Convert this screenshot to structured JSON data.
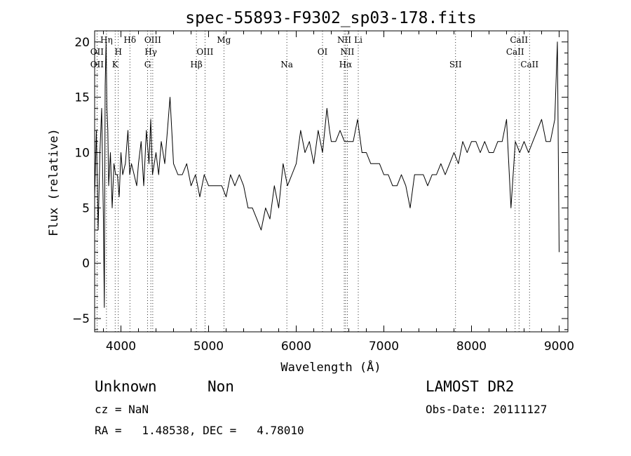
{
  "chart_data": {
    "type": "line",
    "title": "spec-55893-F9302_sp03-178.fits",
    "xlabel": "Wavelength (Å)",
    "ylabel": "Flux (relative)",
    "xlim": [
      3700,
      9100
    ],
    "ylim": [
      -6.2,
      21
    ],
    "xticks": [
      4000,
      5000,
      6000,
      7000,
      8000,
      9000
    ],
    "yticks": [
      -5,
      0,
      5,
      10,
      15,
      20
    ],
    "grid": false,
    "series": [
      {
        "x": [
          3700,
          3720,
          3740,
          3760,
          3780,
          3800,
          3810,
          3820,
          3830,
          3840,
          3850,
          3860,
          3880,
          3900,
          3920,
          3940,
          3960,
          3980,
          4000,
          4020,
          4050,
          4080,
          4100,
          4120,
          4150,
          4180,
          4200,
          4230,
          4260,
          4290,
          4320,
          4340,
          4360,
          4380,
          4400,
          4430,
          4460,
          4500,
          4530,
          4560,
          4600,
          4650,
          4700,
          4750,
          4800,
          4850,
          4900,
          4950,
          5000,
          5050,
          5100,
          5150,
          5200,
          5250,
          5300,
          5350,
          5400,
          5450,
          5500,
          5550,
          5600,
          5650,
          5700,
          5750,
          5800,
          5850,
          5900,
          5950,
          6000,
          6050,
          6100,
          6150,
          6200,
          6250,
          6300,
          6350,
          6380,
          6400,
          6450,
          6500,
          6550,
          6600,
          6650,
          6700,
          6750,
          6800,
          6850,
          6900,
          6950,
          7000,
          7050,
          7100,
          7150,
          7200,
          7250,
          7300,
          7350,
          7400,
          7450,
          7500,
          7550,
          7600,
          7650,
          7700,
          7750,
          7800,
          7850,
          7900,
          7950,
          8000,
          8050,
          8100,
          8150,
          8200,
          8250,
          8300,
          8350,
          8400,
          8450,
          8500,
          8550,
          8600,
          8650,
          8700,
          8750,
          8800,
          8850,
          8900,
          8950,
          8980,
          9000
        ],
        "y": [
          6,
          12,
          3,
          10,
          14,
          4,
          -4,
          16,
          20,
          14,
          12,
          7,
          10,
          5,
          9,
          8,
          8,
          6,
          10,
          8,
          9,
          12,
          8,
          9,
          8,
          7,
          9,
          11,
          7,
          12,
          9,
          13,
          8,
          9,
          10,
          8,
          11,
          9,
          12,
          15,
          9,
          8,
          8,
          9,
          7,
          8,
          6,
          8,
          7,
          7,
          7,
          7,
          6,
          8,
          7,
          8,
          7,
          5,
          5,
          4,
          3,
          5,
          4,
          7,
          5,
          9,
          7,
          8,
          9,
          12,
          10,
          11,
          9,
          12,
          10,
          14,
          12,
          11,
          11,
          12,
          11,
          11,
          11,
          13,
          10,
          10,
          9,
          9,
          9,
          8,
          8,
          7,
          7,
          8,
          7,
          5,
          8,
          8,
          8,
          7,
          8,
          8,
          9,
          8,
          9,
          10,
          9,
          11,
          10,
          11,
          11,
          10,
          11,
          10,
          10,
          11,
          11,
          13,
          5,
          11,
          10,
          11,
          10,
          11,
          12,
          13,
          11,
          11,
          13,
          20,
          1
        ]
      }
    ],
    "spectral_lines": [
      {
        "name": "OII",
        "x": 3727,
        "row": 1
      },
      {
        "name": "OII",
        "x": 3727,
        "row": 2
      },
      {
        "name": "Hη",
        "x": 3835,
        "row": 0
      },
      {
        "name": "H",
        "x": 3970,
        "row": 1
      },
      {
        "name": "K",
        "x": 3934,
        "row": 2
      },
      {
        "name": "Hδ",
        "x": 4102,
        "row": 0
      },
      {
        "name": "OIII",
        "x": 4363,
        "row": 0
      },
      {
        "name": "Hγ",
        "x": 4341,
        "row": 1
      },
      {
        "name": "G",
        "x": 4304,
        "row": 2
      },
      {
        "name": "Hβ",
        "x": 4861,
        "row": 2
      },
      {
        "name": "OIII",
        "x": 4959,
        "row": 1
      },
      {
        "name": "Mg",
        "x": 5175,
        "row": 0
      },
      {
        "name": "Na",
        "x": 5893,
        "row": 2
      },
      {
        "name": "OI",
        "x": 6300,
        "row": 1
      },
      {
        "name": "NII",
        "x": 6548,
        "row": 0
      },
      {
        "name": "Li",
        "x": 6708,
        "row": 0
      },
      {
        "name": "NII",
        "x": 6583,
        "row": 1
      },
      {
        "name": "Hα",
        "x": 6563,
        "row": 2
      },
      {
        "name": "SII",
        "x": 7818,
        "row": 2
      },
      {
        "name": "CaII",
        "x": 8542,
        "row": 0
      },
      {
        "name": "CaII",
        "x": 8498,
        "row": 1
      },
      {
        "name": "CaII",
        "x": 8662,
        "row": 2
      }
    ],
    "line_marker_wavelengths": [
      3727,
      3835,
      3934,
      3970,
      4102,
      4304,
      4341,
      4363,
      4861,
      4959,
      5175,
      5893,
      6300,
      6548,
      6563,
      6583,
      6708,
      7818,
      8498,
      8542,
      8662
    ]
  },
  "info": {
    "class": "Unknown",
    "subclass": "Non",
    "survey": "LAMOST DR2",
    "cz": "cz = NaN",
    "obs_date": "Obs-Date: 20111127",
    "coords": "RA =   1.48538, DEC =   4.78010"
  }
}
